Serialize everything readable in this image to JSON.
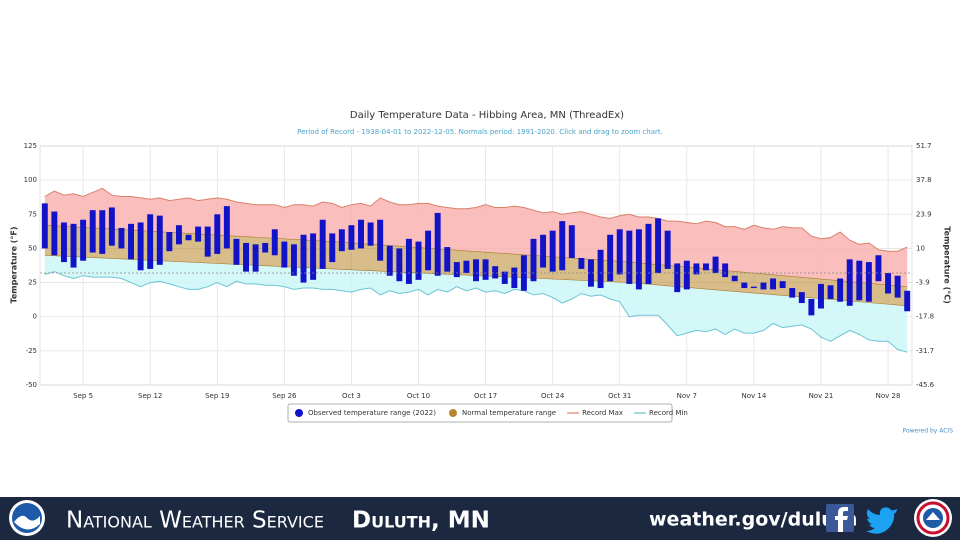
{
  "chart_data": {
    "type": "columnrange",
    "title": "Daily Temperature Data - Hibbing Area, MN (ThreadEx)",
    "subtitle": "Period of Record - 1938-04-01 to 2022-12-05. Normals period: 1991-2020. Click and drag to zoom chart.",
    "y_label": "Temperature (°F)",
    "y2_label": "Temperature (°C)",
    "credits": "Powered by ACIS",
    "categories": [
      null,
      null,
      null,
      null,
      "Sep 5",
      null,
      null,
      null,
      null,
      null,
      null,
      "Sep 12",
      null,
      null,
      null,
      null,
      null,
      null,
      "Sep 19",
      null,
      null,
      null,
      null,
      null,
      null,
      "Sep 26",
      null,
      null,
      null,
      null,
      null,
      null,
      "Oct 3",
      null,
      null,
      null,
      null,
      null,
      null,
      "Oct 10",
      null,
      null,
      null,
      null,
      null,
      null,
      "Oct 17",
      null,
      null,
      null,
      null,
      null,
      null,
      "Oct 24",
      null,
      null,
      null,
      null,
      null,
      null,
      "Oct 31",
      null,
      null,
      null,
      null,
      null,
      null,
      "Nov 7",
      null,
      null,
      null,
      null,
      null,
      null,
      "Nov 14",
      null,
      null,
      null,
      null,
      null,
      null,
      "Nov 21",
      null,
      null,
      null,
      null,
      null,
      null,
      "Nov 28",
      null,
      null
    ],
    "ylim": [
      -50,
      125
    ],
    "yticks": [
      -50,
      -25,
      0,
      25,
      50,
      75,
      100,
      125
    ],
    "y2lim": [
      -45.6,
      51.7
    ],
    "y2ticks": [
      -45.6,
      -31.7,
      -17.8,
      -3.9,
      10,
      23.9,
      37.8,
      51.7
    ],
    "threshold": 32,
    "grid": true,
    "legend": "bottom",
    "series": [
      {
        "name": "Observed temperature range (2022)",
        "type": "columnrange",
        "color": "#1212c9",
        "high": [
          83,
          77,
          69,
          68,
          71,
          78,
          78,
          80,
          65,
          68,
          69,
          75,
          74,
          62,
          67,
          60,
          66,
          66,
          75,
          81,
          57,
          54,
          53,
          54,
          64,
          55,
          53,
          60,
          61,
          71,
          61,
          64,
          67,
          71,
          69,
          71,
          52,
          50,
          57,
          55,
          63,
          76,
          51,
          40,
          41,
          42,
          42,
          37,
          33,
          36,
          45,
          57,
          60,
          63,
          70,
          67,
          43,
          42,
          49,
          60,
          64,
          63,
          64,
          68,
          72,
          63,
          39,
          41,
          39,
          39,
          44,
          39,
          30,
          25,
          22,
          25,
          28,
          26,
          21,
          18,
          13,
          24,
          23,
          28,
          42,
          41,
          40,
          45,
          32,
          30,
          19
        ],
        "low": [
          50,
          45,
          40,
          36,
          41,
          47,
          46,
          52,
          50,
          42,
          34,
          35,
          38,
          48,
          53,
          56,
          55,
          44,
          46,
          50,
          38,
          33,
          33,
          47,
          45,
          36,
          30,
          25,
          27,
          35,
          40,
          48,
          49,
          50,
          52,
          41,
          30,
          26,
          24,
          27,
          34,
          30,
          33,
          29,
          32,
          26,
          27,
          28,
          24,
          21,
          19,
          26,
          36,
          33,
          34,
          43,
          35,
          22,
          21,
          26,
          31,
          24,
          20,
          24,
          32,
          35,
          18,
          20,
          31,
          34,
          32,
          29,
          26,
          21,
          21,
          20,
          20,
          21,
          14,
          10,
          1,
          6,
          13,
          11,
          8,
          12,
          11,
          26,
          17,
          14,
          4
        ]
      },
      {
        "name": "Normal temperature range",
        "type": "arearange",
        "color": "#b8862b",
        "x": [
          0,
          30,
          61,
          90
        ],
        "high": [
          67,
          55,
          40,
          22
        ],
        "low": [
          45,
          35,
          25,
          8
        ]
      },
      {
        "name": "Record Max",
        "type": "line",
        "color": "#d9826b",
        "values": [
          88,
          92,
          89,
          90,
          88,
          91,
          94,
          89,
          88,
          88,
          87,
          86,
          87,
          85,
          86,
          87,
          85,
          86,
          87,
          86,
          84,
          83,
          82,
          82,
          82,
          80,
          82,
          82,
          81,
          84,
          83,
          80,
          82,
          83,
          81,
          87,
          84,
          82,
          82,
          83,
          83,
          81,
          80,
          79,
          79,
          80,
          82,
          80,
          80,
          81,
          80,
          78,
          76,
          77,
          75,
          76,
          77,
          75,
          73,
          72,
          74,
          75,
          73,
          73,
          72,
          70,
          70,
          69,
          68,
          70,
          69,
          66,
          66,
          64,
          67,
          65,
          64,
          66,
          65,
          65,
          59,
          57,
          58,
          62,
          56,
          53,
          54,
          49,
          48,
          48,
          51
        ]
      },
      {
        "name": "Record Min",
        "type": "line",
        "color": "#6cc4d6",
        "values": [
          31,
          33,
          30,
          28,
          30,
          29,
          29,
          29,
          28,
          25,
          22,
          25,
          26,
          24,
          22,
          20,
          20,
          22,
          25,
          22,
          26,
          24,
          24,
          23,
          23,
          22,
          20,
          21,
          21,
          20,
          20,
          19,
          18,
          20,
          21,
          16,
          19,
          17,
          18,
          20,
          16,
          20,
          18,
          22,
          19,
          21,
          18,
          19,
          17,
          20,
          19,
          16,
          17,
          14,
          10,
          13,
          17,
          15,
          16,
          13,
          11,
          0,
          1,
          1,
          1,
          -6,
          -14,
          -12,
          -10,
          -11,
          -9,
          -13,
          -9,
          -12,
          -12,
          -10,
          -5,
          -8,
          -7,
          -6,
          -9,
          -15,
          -18,
          -14,
          -10,
          -13,
          -17,
          -18,
          -18,
          -24,
          -26
        ]
      }
    ]
  },
  "footer": {
    "agency": "National Weather Service",
    "office": "Duluth, MN",
    "url": "weather.gov/duluth"
  }
}
